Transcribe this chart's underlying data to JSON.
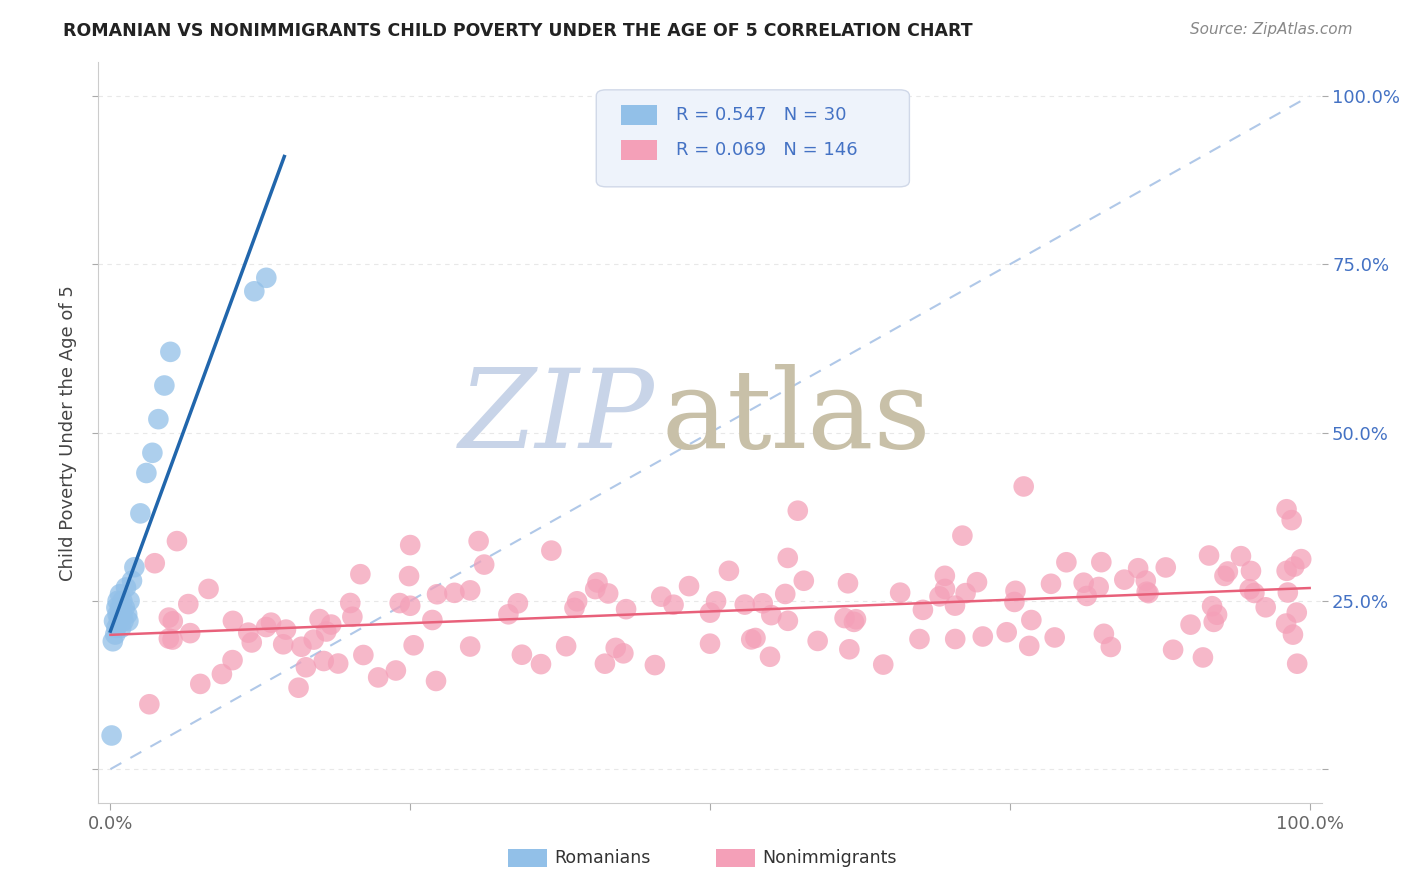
{
  "title": "ROMANIAN VS NONIMMIGRANTS CHILD POVERTY UNDER THE AGE OF 5 CORRELATION CHART",
  "source": "Source: ZipAtlas.com",
  "ylabel": "Child Poverty Under the Age of 5",
  "romanian_R": 0.547,
  "romanian_N": 30,
  "nonimmigrant_R": 0.069,
  "nonimmigrant_N": 146,
  "xlim": [
    -0.01,
    1.01
  ],
  "ylim": [
    -0.05,
    1.05
  ],
  "xticks": [
    0.0,
    0.25,
    0.5,
    0.75,
    1.0
  ],
  "xticklabels": [
    "0.0%",
    "",
    "",
    "",
    "100.0%"
  ],
  "yticks": [
    0.0,
    0.25,
    0.5,
    0.75,
    1.0
  ],
  "yticklabels_right": [
    "",
    "25.0%",
    "50.0%",
    "75.0%",
    "100.0%"
  ],
  "romanian_color": "#92c0e8",
  "nonimmigrant_color": "#f4a0b8",
  "romanian_line_color": "#2166ac",
  "nonimmigrant_line_color": "#e8607a",
  "dashed_line_color": "#b0c8e8",
  "grid_color": "#e8e8e8",
  "legend_bg": "#eef3fb",
  "legend_border": "#d0d8e8",
  "right_tick_color": "#4472c4",
  "bottom_tick_color": "#666666",
  "title_color": "#222222",
  "source_color": "#888888",
  "ylabel_color": "#444444",
  "watermark_zip_color": "#c8d4e8",
  "watermark_atlas_color": "#c8c0a8"
}
